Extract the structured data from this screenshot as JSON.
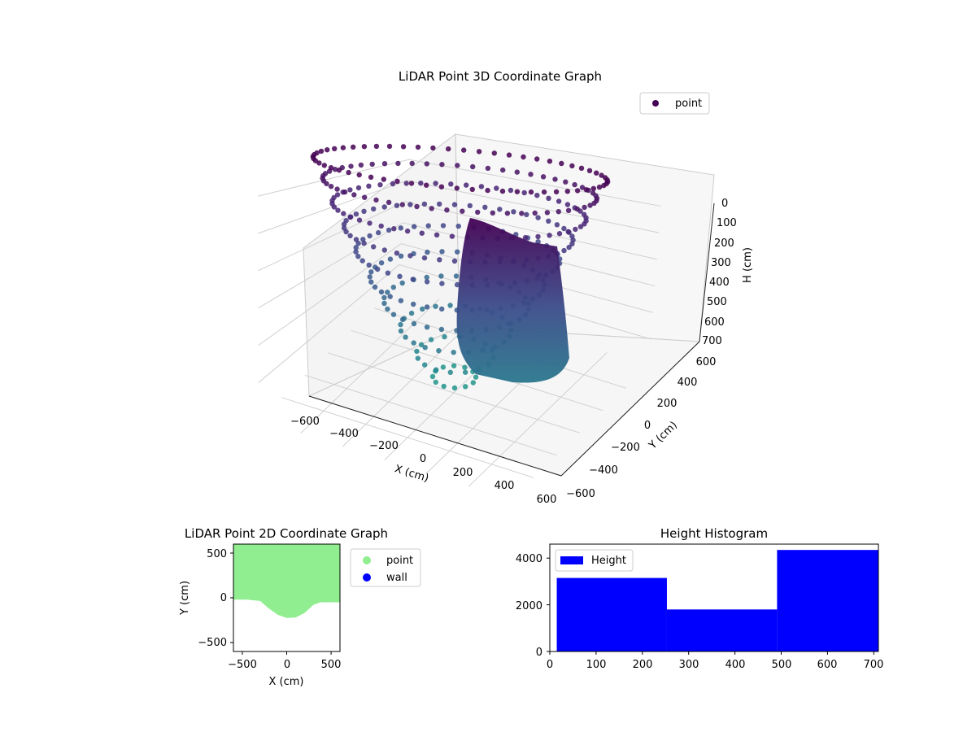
{
  "colors": {
    "point_3d": "#440154",
    "point_2d": "#90ee90",
    "wall_2d": "#0000ff",
    "histogram": "#0000ff",
    "colormap": "viridis"
  },
  "chart_data": [
    {
      "type": "scatter",
      "projection": "3d",
      "title": "LiDAR Point 3D Coordinate Graph",
      "xlabel": "X (cm)",
      "ylabel": "Y (cm)",
      "zlabel": "H (cm)",
      "xlim": [
        -600,
        600
      ],
      "ylim": [
        -600,
        600
      ],
      "zlim": [
        0,
        700
      ],
      "z_inverted": true,
      "xticks": [
        "−600",
        "−400",
        "−200",
        "0",
        "200",
        "400",
        "600"
      ],
      "yticks": [
        "−600",
        "−400",
        "−200",
        "0",
        "200",
        "400",
        "600"
      ],
      "zticks": [
        "0",
        "100",
        "200",
        "300",
        "400",
        "500",
        "600",
        "700"
      ],
      "legend": [
        "point"
      ],
      "legend_position": "top-right",
      "grid": true,
      "description_of_shape": "bowl-shaped point cloud of radius ~600 cm, deepest (~700 cm) at center; dense wall surface near x=-100..100",
      "series": [
        {
          "name": "point",
          "rings": [
            {
              "radius": 600,
              "h": 0
            },
            {
              "radius": 560,
              "h": 60
            },
            {
              "radius": 520,
              "h": 130
            },
            {
              "radius": 470,
              "h": 200
            },
            {
              "radius": 420,
              "h": 270
            },
            {
              "radius": 360,
              "h": 350
            },
            {
              "radius": 300,
              "h": 420
            },
            {
              "radius": 230,
              "h": 500
            },
            {
              "radius": 160,
              "h": 580
            },
            {
              "radius": 90,
              "h": 650
            }
          ]
        }
      ]
    },
    {
      "type": "scatter",
      "title": "LiDAR Point 2D Coordinate Graph",
      "xlabel": "X (cm)",
      "ylabel": "Y (cm)",
      "xlim": [
        -600,
        600
      ],
      "ylim": [
        -600,
        600
      ],
      "xticks": [
        "−500",
        "0",
        "500"
      ],
      "yticks": [
        "−500",
        "0",
        "500"
      ],
      "legend": [
        "point",
        "wall"
      ],
      "legend_position": "outside-right",
      "series": [
        {
          "name": "point",
          "boundary": [
            {
              "x": -600,
              "y": -20
            },
            {
              "x": -450,
              "y": -20
            },
            {
              "x": -300,
              "y": -35
            },
            {
              "x": -200,
              "y": -120
            },
            {
              "x": -100,
              "y": -190
            },
            {
              "x": 0,
              "y": -225
            },
            {
              "x": 100,
              "y": -220
            },
            {
              "x": 200,
              "y": -170
            },
            {
              "x": 300,
              "y": -80
            },
            {
              "x": 380,
              "y": -50
            },
            {
              "x": 450,
              "y": -50
            },
            {
              "x": 600,
              "y": -50
            }
          ]
        },
        {
          "name": "wall",
          "points": []
        }
      ]
    },
    {
      "type": "bar",
      "subtype": "histogram",
      "title": "Height Histogram",
      "xlim": [
        0,
        710
      ],
      "ylim": [
        0,
        4600
      ],
      "xticks": [
        "0",
        "100",
        "200",
        "300",
        "400",
        "500",
        "600",
        "700"
      ],
      "yticks": [
        "0",
        "2000",
        "4000"
      ],
      "legend": [
        "Height"
      ],
      "legend_position": "top-left",
      "series": [
        {
          "name": "Height",
          "bins": [
            {
              "x0": 15,
              "x1": 253,
              "count": 3150
            },
            {
              "x0": 253,
              "x1": 491,
              "count": 1800
            },
            {
              "x0": 491,
              "x1": 710,
              "count": 4350
            }
          ]
        }
      ]
    }
  ]
}
